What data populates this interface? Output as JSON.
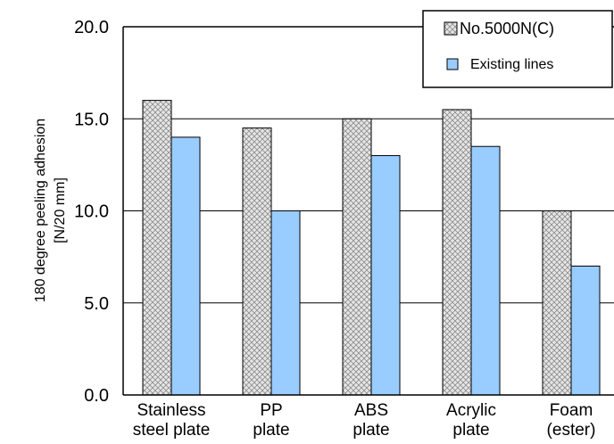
{
  "chart_data": {
    "type": "bar",
    "ylabel": "180 degree peeling adhesion [N/20 mm]",
    "ylabel_lines": [
      "180 degree peeling adhesion",
      "[N/20 mm]"
    ],
    "ylim": [
      0,
      20
    ],
    "yticks": [
      "0.0",
      "5.0",
      "10.0",
      "15.0",
      "20.0"
    ],
    "grid": true,
    "legend_position": "top-right",
    "categories": [
      "Stainless steel plate",
      "PP plate",
      "ABS plate",
      "Acrylic plate",
      "Foam (ester)"
    ],
    "category_lines": [
      [
        "Stainless",
        "steel plate"
      ],
      [
        "PP",
        "plate"
      ],
      [
        "ABS",
        "plate"
      ],
      [
        "Acrylic",
        "plate"
      ],
      [
        "Foam",
        "(ester)"
      ]
    ],
    "series": [
      {
        "name": "No.5000N(C)",
        "values": [
          16.0,
          14.5,
          15.0,
          15.5,
          10.0
        ],
        "fill": "crosshatch-gray"
      },
      {
        "name": "Existing lines",
        "values": [
          14.0,
          10.0,
          13.0,
          13.5,
          7.0
        ],
        "color": "#99ccff"
      }
    ]
  }
}
